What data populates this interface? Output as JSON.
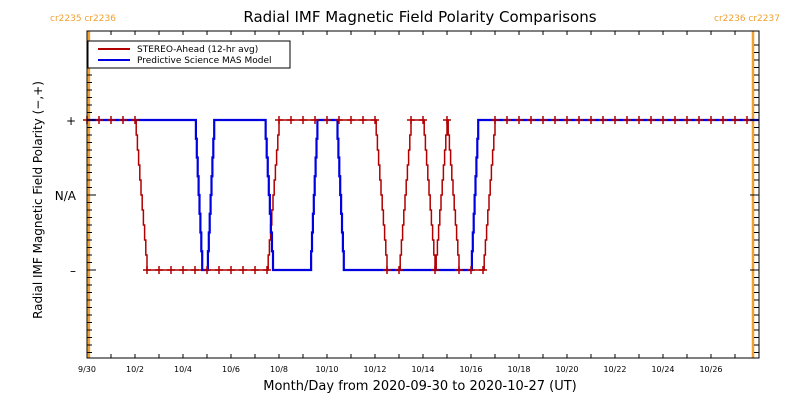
{
  "chart_data": {
    "type": "line",
    "title": "Radial IMF Magnetic Field Polarity Comparisons",
    "xlabel": "Month/Day from 2020-09-30 to 2020-10-27 (UT)",
    "ylabel": "Radial IMF Magnetic Field Polarity (−,+)",
    "x_units": "days since 2020-09-30 00:00 UT",
    "xlim": [
      0,
      28
    ],
    "ylim": [
      -2,
      2
    ],
    "x_ticks": [
      {
        "x": 0,
        "label": "9/30"
      },
      {
        "x": 2,
        "label": "10/2"
      },
      {
        "x": 4,
        "label": "10/4"
      },
      {
        "x": 6,
        "label": "10/6"
      },
      {
        "x": 8,
        "label": "10/8"
      },
      {
        "x": 10,
        "label": "10/10"
      },
      {
        "x": 12,
        "label": "10/12"
      },
      {
        "x": 14,
        "label": "10/14"
      },
      {
        "x": 16,
        "label": "10/16"
      },
      {
        "x": 18,
        "label": "10/18"
      },
      {
        "x": 20,
        "label": "10/20"
      },
      {
        "x": 22,
        "label": "10/22"
      },
      {
        "x": 24,
        "label": "10/24"
      },
      {
        "x": 26,
        "label": "10/26"
      }
    ],
    "y_ticks": [
      {
        "y": 1,
        "label": "+"
      },
      {
        "y": 0,
        "label": "N/A"
      },
      {
        "y": -1,
        "label": "–"
      }
    ],
    "carrington_markers": [
      {
        "x": 0.08,
        "label": "cr2235 cr2236",
        "position": "top-left"
      },
      {
        "x": 27.75,
        "label": "cr2236 cr2237",
        "position": "top-right"
      }
    ],
    "marker_color": "#f0a030",
    "legend": {
      "placement": "top-left",
      "entries": [
        {
          "name": "STEREO-Ahead (12-hr avg)",
          "color": "#b00000"
        },
        {
          "name": "Predictive Science MAS Model",
          "color": "#0000e0"
        }
      ]
    },
    "series": [
      {
        "name": "STEREO-Ahead (12-hr avg)",
        "color": "#b00000",
        "markers": "plus",
        "x": [
          0,
          0.5,
          1.0,
          1.5,
          2.0,
          2.5,
          3.0,
          3.5,
          4.0,
          4.5,
          5.0,
          5.5,
          6.0,
          6.5,
          7.0,
          7.5,
          8.0,
          8.5,
          9.0,
          9.5,
          10.0,
          10.5,
          11.0,
          11.5,
          12.0,
          12.5,
          13.0,
          13.5,
          14.0,
          14.5,
          15.0,
          15.5,
          16.0,
          16.5,
          17.0,
          17.5,
          18.0,
          18.5,
          19.0,
          19.5,
          20.0,
          20.5,
          21.0,
          21.5,
          22.0,
          22.5,
          23.0,
          23.5,
          24.0,
          24.5,
          25.0,
          25.5,
          26.0,
          26.5,
          27.0,
          27.5
        ],
        "y": [
          1,
          1,
          1,
          1,
          1,
          -1,
          -1,
          -1,
          -1,
          -1,
          -1,
          -1,
          -1,
          -1,
          -1,
          -1,
          1,
          1,
          1,
          1,
          1,
          1,
          1,
          1,
          1,
          -1,
          -1,
          1,
          1,
          -1,
          1,
          -1,
          -1,
          -1,
          1,
          1,
          1,
          1,
          1,
          1,
          1,
          1,
          1,
          1,
          1,
          1,
          1,
          1,
          1,
          1,
          1,
          1,
          1,
          1,
          1,
          1
        ]
      },
      {
        "name": "Predictive Science MAS Model",
        "color": "#0000e0",
        "markers": "none",
        "x": [
          0,
          4.5,
          4.8,
          5.0,
          5.3,
          7.4,
          7.75,
          9.3,
          9.6,
          10.4,
          10.7,
          16.0,
          16.3,
          28.0
        ],
        "y": [
          1,
          1,
          -1,
          -1,
          1,
          1,
          -1,
          -1,
          1,
          1,
          -1,
          -1,
          1,
          1
        ]
      }
    ]
  }
}
